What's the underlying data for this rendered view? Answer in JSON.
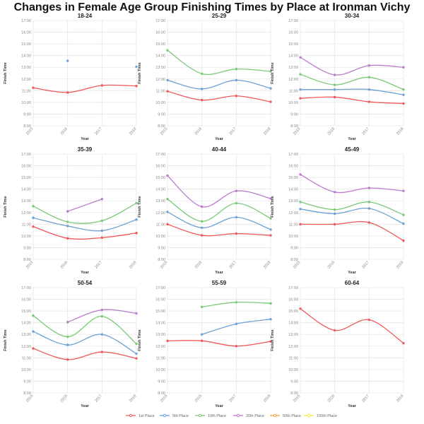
{
  "chart_data": {
    "type": "line",
    "title": "Changes in Female Age Group Finishing Times by Place at Ironman Vichy",
    "xlabel": "Year",
    "ylabel": "Finish Time",
    "x": [
      "2015",
      "2016",
      "2017",
      "2018"
    ],
    "y_ticks": [
      "8:00",
      "9:00",
      "10:00",
      "11:00",
      "12:00",
      "13:00",
      "14:00",
      "15:00",
      "16:00",
      "17:00"
    ],
    "ylim_hours": [
      8,
      17
    ],
    "grid": true,
    "legend_placement": "bottom",
    "legend": [
      {
        "name": "1st Place",
        "color": "#f0595c"
      },
      {
        "name": "5th Place",
        "color": "#6ea1d6"
      },
      {
        "name": "10th Place",
        "color": "#7cc87a"
      },
      {
        "name": "20th Place",
        "color": "#b97dcb"
      },
      {
        "name": "50th Place",
        "color": "#f9a040"
      },
      {
        "name": "100th Place",
        "color": "#f3e640"
      }
    ],
    "panels": [
      {
        "title": "18-24",
        "series": [
          {
            "name": "1st Place",
            "values": [
              11.25,
              10.85,
              11.45,
              11.4
            ]
          },
          {
            "name": "5th Place",
            "values": [
              null,
              13.55,
              null,
              13.05
            ]
          }
        ]
      },
      {
        "title": "25-29",
        "series": [
          {
            "name": "1st Place",
            "values": [
              10.95,
              10.2,
              10.55,
              10.05
            ]
          },
          {
            "name": "5th Place",
            "values": [
              11.9,
              11.15,
              11.9,
              11.2
            ]
          },
          {
            "name": "10th Place",
            "values": [
              14.45,
              12.45,
              12.85,
              12.65
            ]
          }
        ]
      },
      {
        "title": "30-34",
        "series": [
          {
            "name": "1st Place",
            "values": [
              10.35,
              10.45,
              10.05,
              9.9
            ]
          },
          {
            "name": "5th Place",
            "values": [
              11.1,
              11.1,
              11.1,
              10.65
            ]
          },
          {
            "name": "10th Place",
            "values": [
              12.4,
              11.5,
              12.15,
              11.1
            ]
          },
          {
            "name": "20th Place",
            "values": [
              13.85,
              12.35,
              13.15,
              13.0
            ]
          }
        ]
      },
      {
        "title": "35-39",
        "series": [
          {
            "name": "1st Place",
            "values": [
              10.8,
              9.8,
              9.85,
              10.25
            ]
          },
          {
            "name": "5th Place",
            "values": [
              11.55,
              10.85,
              10.45,
              11.4
            ]
          },
          {
            "name": "10th Place",
            "values": [
              12.55,
              11.2,
              11.3,
              12.8
            ]
          },
          {
            "name": "20th Place",
            "values": [
              null,
              12.1,
              13.15,
              null
            ]
          }
        ]
      },
      {
        "title": "40-44",
        "series": [
          {
            "name": "1st Place",
            "values": [
              11.0,
              10.05,
              10.2,
              10.05
            ]
          },
          {
            "name": "5th Place",
            "values": [
              12.05,
              10.7,
              11.6,
              10.55
            ]
          },
          {
            "name": "10th Place",
            "values": [
              13.15,
              11.25,
              12.8,
              11.5
            ]
          },
          {
            "name": "20th Place",
            "values": [
              15.15,
              12.5,
              13.85,
              13.2
            ]
          }
        ]
      },
      {
        "title": "45-49",
        "series": [
          {
            "name": "1st Place",
            "values": [
              11.0,
              11.0,
              11.15,
              9.6
            ]
          },
          {
            "name": "5th Place",
            "values": [
              12.3,
              11.9,
              12.35,
              11.05
            ]
          },
          {
            "name": "10th Place",
            "values": [
              12.9,
              12.25,
              12.9,
              11.8
            ]
          },
          {
            "name": "20th Place",
            "values": [
              15.25,
              13.75,
              14.1,
              13.85
            ]
          }
        ]
      },
      {
        "title": "50-54",
        "series": [
          {
            "name": "1st Place",
            "values": [
              11.8,
              10.85,
              11.5,
              10.95
            ]
          },
          {
            "name": "5th Place",
            "values": [
              13.25,
              12.1,
              13.0,
              11.35
            ]
          },
          {
            "name": "10th Place",
            "values": [
              14.6,
              12.8,
              14.55,
              12.2
            ]
          },
          {
            "name": "20th Place",
            "values": [
              null,
              14.05,
              15.1,
              14.8
            ]
          }
        ]
      },
      {
        "title": "55-59",
        "series": [
          {
            "name": "1st Place",
            "values": [
              12.45,
              12.45,
              12.0,
              12.4
            ]
          },
          {
            "name": "5th Place",
            "values": [
              null,
              13.0,
              13.9,
              14.3
            ]
          },
          {
            "name": "10th Place",
            "values": [
              null,
              15.35,
              15.75,
              15.65
            ]
          }
        ]
      },
      {
        "title": "60-64",
        "series": [
          {
            "name": "1st Place",
            "values": [
              15.2,
              13.35,
              14.25,
              12.25
            ]
          }
        ]
      }
    ]
  }
}
